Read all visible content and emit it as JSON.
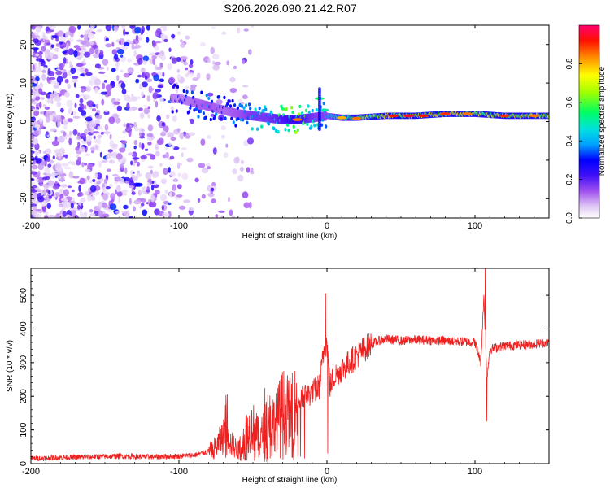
{
  "title": "S206.2026.090.21.42.R07",
  "chart_data": [
    {
      "type": "heatmap",
      "name": "spectrogram",
      "xlabel": "Height of straight line (km)",
      "ylabel": "Frequency (Hz)",
      "xlim": [
        -200,
        150
      ],
      "ylim": [
        -25,
        25
      ],
      "xticks": [
        -200,
        -100,
        0,
        100
      ],
      "yticks": [
        -20,
        -10,
        0,
        10,
        20
      ],
      "colorbar": {
        "label": "Normalized spectral amplitude",
        "range": [
          0,
          1
        ],
        "ticks": [
          "0.0",
          "0.2",
          "0.4",
          "0.6",
          "0.8"
        ],
        "colors": [
          "#ffffff",
          "#e6d2f5",
          "#a050f0",
          "#6010f0",
          "#0000ff",
          "#00c8ff",
          "#00ff80",
          "#80ff00",
          "#ffff00",
          "#ff8000",
          "#ff0000",
          "#ff0060"
        ]
      },
      "ridge": {
        "description": "carrier line frequency vs height",
        "x": [
          -100,
          -90,
          -80,
          -70,
          -60,
          -50,
          -40,
          -30,
          -20,
          -10,
          0,
          10,
          20,
          40,
          60,
          80,
          100,
          120,
          150
        ],
        "freq": [
          6,
          5,
          4,
          3,
          2,
          1.5,
          1,
          0.5,
          0.5,
          1,
          1.5,
          1,
          1,
          1.5,
          1.5,
          2,
          2,
          1.5,
          1.5
        ],
        "amplitude": [
          0.3,
          0.35,
          0.4,
          0.35,
          0.4,
          0.5,
          0.5,
          0.6,
          0.7,
          0.5,
          0.45,
          0.6,
          0.7,
          0.8,
          0.85,
          0.8,
          0.75,
          0.8,
          0.75
        ]
      },
      "noise_region": {
        "x_from": -200,
        "x_to": -60,
        "freq_range": [
          -25,
          25
        ],
        "amplitude_max": 0.3
      }
    },
    {
      "type": "line",
      "name": "snr",
      "xlabel": "Height of straight line (km)",
      "ylabel": "SNR (10 * v/v)",
      "xlim": [
        -200,
        150
      ],
      "ylim": [
        0,
        580
      ],
      "xticks": [
        -200,
        -100,
        0,
        100
      ],
      "yticks": [
        0,
        100,
        200,
        300,
        400,
        500
      ],
      "color": "#ee2020",
      "series": [
        {
          "name": "SNR",
          "x": [
            -200,
            -180,
            -160,
            -140,
            -120,
            -100,
            -90,
            -80,
            -75,
            -70,
            -68,
            -65,
            -60,
            -55,
            -50,
            -45,
            -40,
            -35,
            -30,
            -25,
            -20,
            -15,
            -10,
            -5,
            -2,
            0,
            2,
            5,
            10,
            15,
            20,
            25,
            30,
            35,
            40,
            50,
            60,
            80,
            100,
            104,
            106,
            108,
            110,
            120,
            140,
            150
          ],
          "y": [
            15,
            18,
            20,
            22,
            20,
            22,
            25,
            35,
            50,
            80,
            150,
            60,
            40,
            90,
            110,
            70,
            140,
            120,
            170,
            150,
            180,
            200,
            210,
            230,
            340,
            360,
            230,
            260,
            280,
            300,
            320,
            340,
            355,
            365,
            370,
            365,
            368,
            365,
            360,
            300,
            500,
            250,
            340,
            350,
            355,
            360
          ]
        }
      ],
      "spikes": [
        {
          "x": -68,
          "y": 175
        },
        {
          "x": -42,
          "y": 225
        },
        {
          "x": -1,
          "y": 505
        },
        {
          "x": 0.5,
          "y": 30
        },
        {
          "x": 107,
          "y": 590
        },
        {
          "x": 108,
          "y": 125
        }
      ]
    }
  ]
}
